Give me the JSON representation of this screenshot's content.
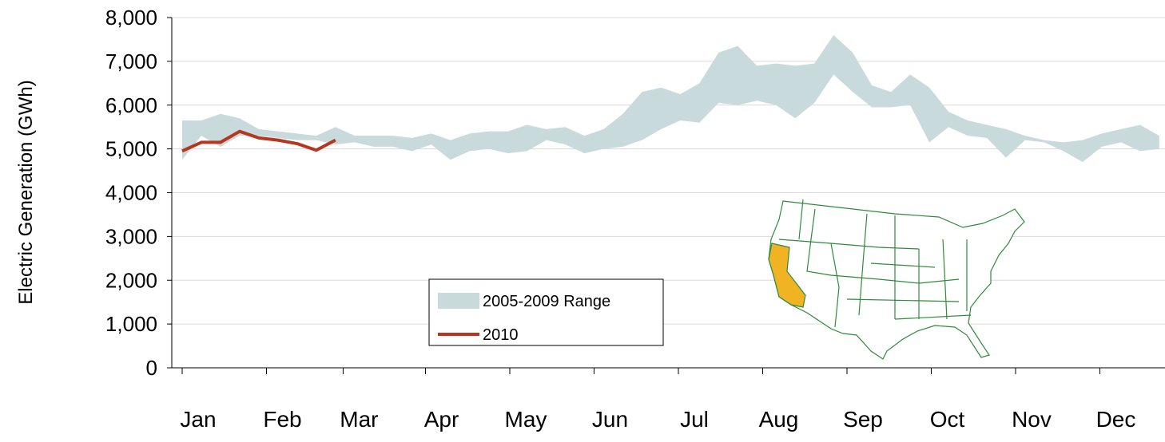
{
  "chart_data": {
    "type": "band",
    "y_label": "Electric Generation (GWh)",
    "x": [
      1,
      2,
      3,
      4,
      5,
      6,
      7,
      8,
      9,
      10,
      11,
      12,
      13,
      14,
      15,
      16,
      17,
      18,
      19,
      20,
      21,
      22,
      23,
      24,
      25,
      26,
      27,
      28,
      29,
      30,
      31,
      32,
      33,
      34,
      35,
      36,
      37,
      38,
      39,
      40,
      41,
      42,
      43,
      44,
      45,
      46,
      47,
      48,
      49,
      50,
      51,
      52
    ],
    "xlim": [
      1,
      52.3
    ],
    "xticks": [
      {
        "value": 1,
        "label": "Jan"
      },
      {
        "value": 5.4,
        "label": "Feb"
      },
      {
        "value": 9.4,
        "label": "Mar"
      },
      {
        "value": 13.7,
        "label": "Apr"
      },
      {
        "value": 18.1,
        "label": "May"
      },
      {
        "value": 22.5,
        "label": "Jun"
      },
      {
        "value": 26.9,
        "label": "Jul"
      },
      {
        "value": 31.3,
        "label": "Aug"
      },
      {
        "value": 35.7,
        "label": "Sep"
      },
      {
        "value": 40.1,
        "label": "Oct"
      },
      {
        "value": 44.5,
        "label": "Nov"
      },
      {
        "value": 48.9,
        "label": "Dec"
      }
    ],
    "ylim": [
      0,
      8000
    ],
    "yticks": [
      0,
      {
        "value": 1000,
        "label": "1,000"
      },
      {
        "value": 2000,
        "label": "2,000"
      },
      {
        "value": 3000,
        "label": "3,000"
      },
      {
        "value": 4000,
        "label": "4,000"
      },
      {
        "value": 5000,
        "label": "5,000"
      },
      {
        "value": 6000,
        "label": "6,000"
      },
      {
        "value": 7000,
        "label": "7,000"
      },
      {
        "value": 8000,
        "label": "8,000"
      }
    ],
    "grid": true,
    "series": [
      {
        "name": "2005-2009 Range",
        "color": "#c9dadc",
        "high": [
          5650,
          5650,
          5800,
          5700,
          5450,
          5400,
          5350,
          5300,
          5500,
          5300,
          5300,
          5300,
          5250,
          5350,
          5200,
          5350,
          5400,
          5400,
          5550,
          5450,
          5500,
          5300,
          5450,
          5800,
          6300,
          6400,
          6250,
          6500,
          7200,
          7350,
          6900,
          6950,
          6900,
          6950,
          7600,
          7200,
          6450,
          6300,
          6700,
          6400,
          5850,
          5650,
          5550,
          5450,
          5300,
          5200,
          5150,
          5200,
          5350,
          5450,
          5550,
          5300
        ],
        "low": [
          4750,
          5300,
          5050,
          5300,
          5300,
          5250,
          5200,
          5200,
          5100,
          5150,
          5050,
          5050,
          4950,
          5100,
          4750,
          4950,
          5000,
          4900,
          4950,
          5200,
          5100,
          4900,
          5000,
          5050,
          5200,
          5450,
          5650,
          5600,
          6050,
          6000,
          6100,
          6000,
          5700,
          6050,
          6700,
          6300,
          5950,
          5950,
          6000,
          5150,
          5500,
          5300,
          5250,
          4800,
          5200,
          5150,
          4950,
          4700,
          5050,
          5150,
          4950,
          5000
        ]
      },
      {
        "name": "2010",
        "color": "#b5371f",
        "x": [
          1,
          2,
          3,
          4,
          5,
          6,
          7,
          8,
          9
        ],
        "values": [
          4950,
          5150,
          5150,
          5400,
          5250,
          5200,
          5120,
          4970,
          5200
        ]
      }
    ]
  }
}
